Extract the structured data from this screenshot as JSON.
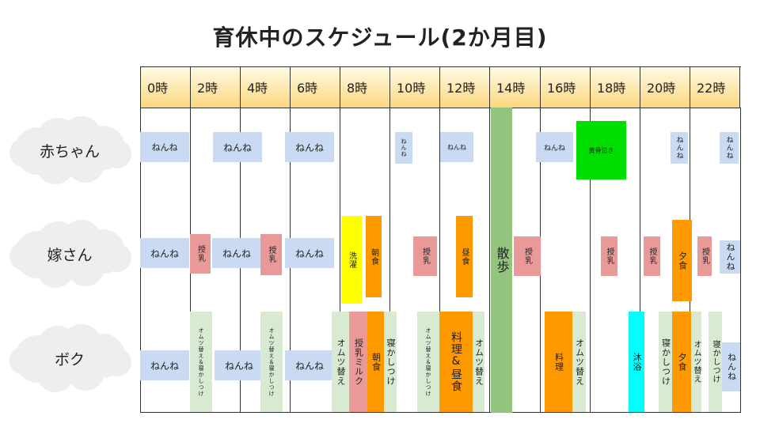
{
  "title": "育休中のスケジュール(2か月目)",
  "hours": [
    "0時",
    "2時",
    "4時",
    "6時",
    "8時",
    "10時",
    "12時",
    "14時",
    "16時",
    "18時",
    "20時",
    "22時"
  ],
  "rows": {
    "baby": "赤ちゃん",
    "wife": "嫁さん",
    "me": "ボク"
  },
  "baby_blocks": [
    {
      "id": "b1",
      "label": "ねんね",
      "color": "#c9daf2"
    },
    {
      "id": "b2",
      "label": "ねんね",
      "color": "#c9daf2"
    },
    {
      "id": "b3",
      "label": "ねんね",
      "color": "#c9daf2"
    },
    {
      "id": "b4",
      "label": "ねんね",
      "color": "#c9daf2"
    },
    {
      "id": "b5",
      "label": "ねんね",
      "color": "#c9daf2"
    },
    {
      "id": "b6",
      "label": "ねんね",
      "color": "#c9daf2"
    },
    {
      "id": "b7",
      "label": "黄昏泣き",
      "color": "#00dd00"
    },
    {
      "id": "b8",
      "label": "ねんね",
      "color": "#c9daf2"
    },
    {
      "id": "b9",
      "label": "ねんね",
      "color": "#c9daf2"
    }
  ],
  "walk": {
    "label": "散歩",
    "color": "#93c47d"
  },
  "wife_blocks": [
    {
      "id": "w1",
      "label": "ねんね",
      "color": "#c9daf2"
    },
    {
      "id": "w2",
      "label": "授乳",
      "color": "#ea9999"
    },
    {
      "id": "w3",
      "label": "ねんね",
      "color": "#c9daf2"
    },
    {
      "id": "w4",
      "label": "授乳",
      "color": "#ea9999"
    },
    {
      "id": "w5",
      "label": "ねんね",
      "color": "#c9daf2"
    },
    {
      "id": "w6",
      "label": "洗濯",
      "color": "#ffff00"
    },
    {
      "id": "w7",
      "label": "朝食",
      "color": "#ff9900"
    },
    {
      "id": "w8",
      "label": "授乳",
      "color": "#ea9999"
    },
    {
      "id": "w9",
      "label": "昼食",
      "color": "#ff9900"
    },
    {
      "id": "w10",
      "label": "授乳",
      "color": "#ea9999"
    },
    {
      "id": "w11",
      "label": "授乳",
      "color": "#ea9999"
    },
    {
      "id": "w12",
      "label": "授乳",
      "color": "#ea9999"
    },
    {
      "id": "w13",
      "label": "夕食",
      "color": "#ff9900"
    },
    {
      "id": "w14",
      "label": "授乳",
      "color": "#ea9999"
    },
    {
      "id": "w15",
      "label": "ねんね",
      "color": "#c9daf2"
    }
  ],
  "me_blocks": [
    {
      "id": "m1",
      "label": "ねんね",
      "color": "#c9daf2"
    },
    {
      "id": "m2",
      "label": "オムツ替え＆寝かしつけ",
      "color": "#d9ead3"
    },
    {
      "id": "m3",
      "label": "ねんね",
      "color": "#c9daf2"
    },
    {
      "id": "m4",
      "label": "オムツ替え＆寝かしつけ",
      "color": "#d9ead3"
    },
    {
      "id": "m5",
      "label": "ねんね",
      "color": "#c9daf2"
    },
    {
      "id": "m6",
      "label": "オムツ替え",
      "color": "#d9ead3"
    },
    {
      "id": "m7",
      "label": "授乳ミルク",
      "color": "#ea9999"
    },
    {
      "id": "m8",
      "label": "朝食",
      "color": "#ff9900"
    },
    {
      "id": "m9",
      "label": "寝かしつけ",
      "color": "#d9ead3"
    },
    {
      "id": "m10",
      "label": "オムツ替え＆寝かしつけ",
      "color": "#d9ead3"
    },
    {
      "id": "m11",
      "label": "料理&昼食",
      "color": "#ff9900"
    },
    {
      "id": "m12",
      "label": "オムツ替え",
      "color": "#d9ead3"
    },
    {
      "id": "m13",
      "label": "料理",
      "color": "#ff9900"
    },
    {
      "id": "m14",
      "label": "オムツ替え",
      "color": "#d9ead3"
    },
    {
      "id": "m15",
      "label": "沐浴",
      "color": "#00ffff"
    },
    {
      "id": "m16",
      "label": "寝かしつけ",
      "color": "#d9ead3"
    },
    {
      "id": "m17",
      "label": "夕食",
      "color": "#ff9900"
    },
    {
      "id": "m18",
      "label": "オムツ替え",
      "color": "#d9ead3"
    },
    {
      "id": "m19",
      "label": "寝かしつけ",
      "color": "#d9ead3"
    },
    {
      "id": "m20",
      "label": "ねんね",
      "color": "#c9daf2"
    }
  ]
}
